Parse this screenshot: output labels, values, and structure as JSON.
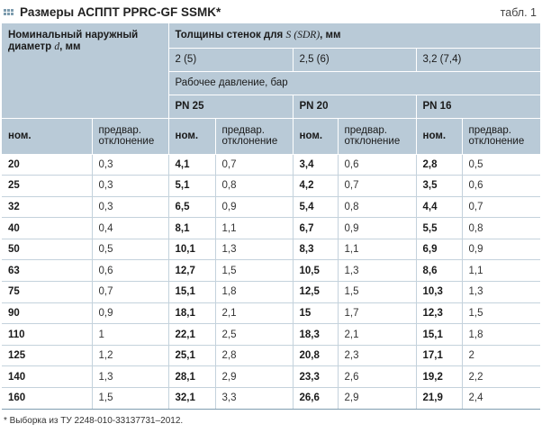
{
  "title": "Размеры АСППТ PPRC-GF SSMK*",
  "table_label": "табл. 1",
  "header": {
    "diameter": {
      "line1": "Номинальный наружный",
      "line2_pre": "диаметр",
      "symbol": "d",
      "subscript": "",
      "unit": ", мм"
    },
    "wall": {
      "pre": "Толщины стенок для",
      "symbol": "S",
      "sdr": "(SDR)",
      "unit": ", мм"
    },
    "thicknesses": [
      "2 (5)",
      "2,5 (6)",
      "3,2 (7,4)"
    ],
    "pressure": "Рабочее давление, бар",
    "pn": [
      "PN 25",
      "PN 20",
      "PN 16"
    ],
    "nom": "ном.",
    "dev_line1": "предвар.",
    "dev_line2": "отклонение"
  },
  "rows": [
    {
      "d": "20",
      "d_dev": "0,3",
      "s1": "4,1",
      "s1_dev": "0,7",
      "s2": "3,4",
      "s2_dev": "0,6",
      "s3": "2,8",
      "s3_dev": "0,5"
    },
    {
      "d": "25",
      "d_dev": "0,3",
      "s1": "5,1",
      "s1_dev": "0,8",
      "s2": "4,2",
      "s2_dev": "0,7",
      "s3": "3,5",
      "s3_dev": "0,6"
    },
    {
      "d": "32",
      "d_dev": "0,3",
      "s1": "6,5",
      "s1_dev": "0,9",
      "s2": "5,4",
      "s2_dev": "0,8",
      "s3": "4,4",
      "s3_dev": "0,7"
    },
    {
      "d": "40",
      "d_dev": "0,4",
      "s1": "8,1",
      "s1_dev": "1,1",
      "s2": "6,7",
      "s2_dev": "0,9",
      "s3": "5,5",
      "s3_dev": "0,8"
    },
    {
      "d": "50",
      "d_dev": "0,5",
      "s1": "10,1",
      "s1_dev": "1,3",
      "s2": "8,3",
      "s2_dev": "1,1",
      "s3": "6,9",
      "s3_dev": "0,9"
    },
    {
      "d": "63",
      "d_dev": "0,6",
      "s1": "12,7",
      "s1_dev": "1,5",
      "s2": "10,5",
      "s2_dev": "1,3",
      "s3": "8,6",
      "s3_dev": "1,1"
    },
    {
      "d": "75",
      "d_dev": "0,7",
      "s1": "15,1",
      "s1_dev": "1,8",
      "s2": "12,5",
      "s2_dev": "1,5",
      "s3": "10,3",
      "s3_dev": "1,3"
    },
    {
      "d": "90",
      "d_dev": "0,9",
      "s1": "18,1",
      "s1_dev": "2,1",
      "s2": "15",
      "s2_dev": "1,7",
      "s3": "12,3",
      "s3_dev": "1,5"
    },
    {
      "d": "110",
      "d_dev": "1",
      "s1": "22,1",
      "s1_dev": "2,5",
      "s2": "18,3",
      "s2_dev": "2,1",
      "s3": "15,1",
      "s3_dev": "1,8"
    },
    {
      "d": "125",
      "d_dev": "1,2",
      "s1": "25,1",
      "s1_dev": "2,8",
      "s2": "20,8",
      "s2_dev": "2,3",
      "s3": "17,1",
      "s3_dev": "2"
    },
    {
      "d": "140",
      "d_dev": "1,3",
      "s1": "28,1",
      "s1_dev": "2,9",
      "s2": "23,3",
      "s2_dev": "2,6",
      "s3": "19,2",
      "s3_dev": "2,2"
    },
    {
      "d": "160",
      "d_dev": "1,5",
      "s1": "32,1",
      "s1_dev": "3,3",
      "s2": "26,6",
      "s2_dev": "2,9",
      "s3": "21,9",
      "s3_dev": "2,4"
    }
  ],
  "footnote": "* Выборка из ТУ 2248-010-33137731–2012.",
  "colors": {
    "header_bg": "#b9cad7",
    "grip": "#7d9cae",
    "rule": "#c4d2dc"
  },
  "icons": {
    "title_marker": "grip-squares-icon"
  }
}
